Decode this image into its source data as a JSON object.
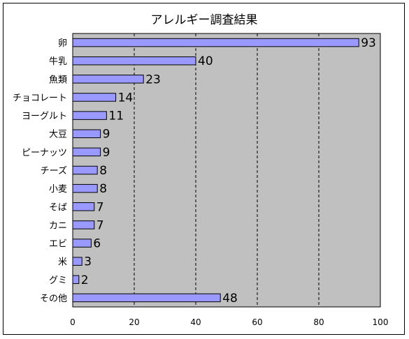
{
  "chart_data": {
    "type": "bar",
    "orientation": "horizontal",
    "title": "アレルギー調査結果",
    "categories": [
      "卵",
      "牛乳",
      "魚類",
      "チョコレート",
      "ヨーグルト",
      "大豆",
      "ピーナッツ",
      "チーズ",
      "小麦",
      "そば",
      "カニ",
      "エビ",
      "米",
      "グミ",
      "その他"
    ],
    "values": [
      93,
      40,
      23,
      14,
      11,
      9,
      9,
      8,
      8,
      7,
      7,
      6,
      3,
      2,
      48
    ],
    "xlim": [
      0,
      100
    ],
    "xticks": [
      0,
      20,
      40,
      60,
      80,
      100
    ],
    "xticks_labels": [
      "0",
      "20",
      "40",
      "60",
      "80",
      "100"
    ],
    "grid": "vertical dashed",
    "legend": "none",
    "colors": {
      "bar_fill": "#9999ff",
      "plot_background": "#c0c0c0",
      "bar_stroke": "#000000"
    }
  }
}
